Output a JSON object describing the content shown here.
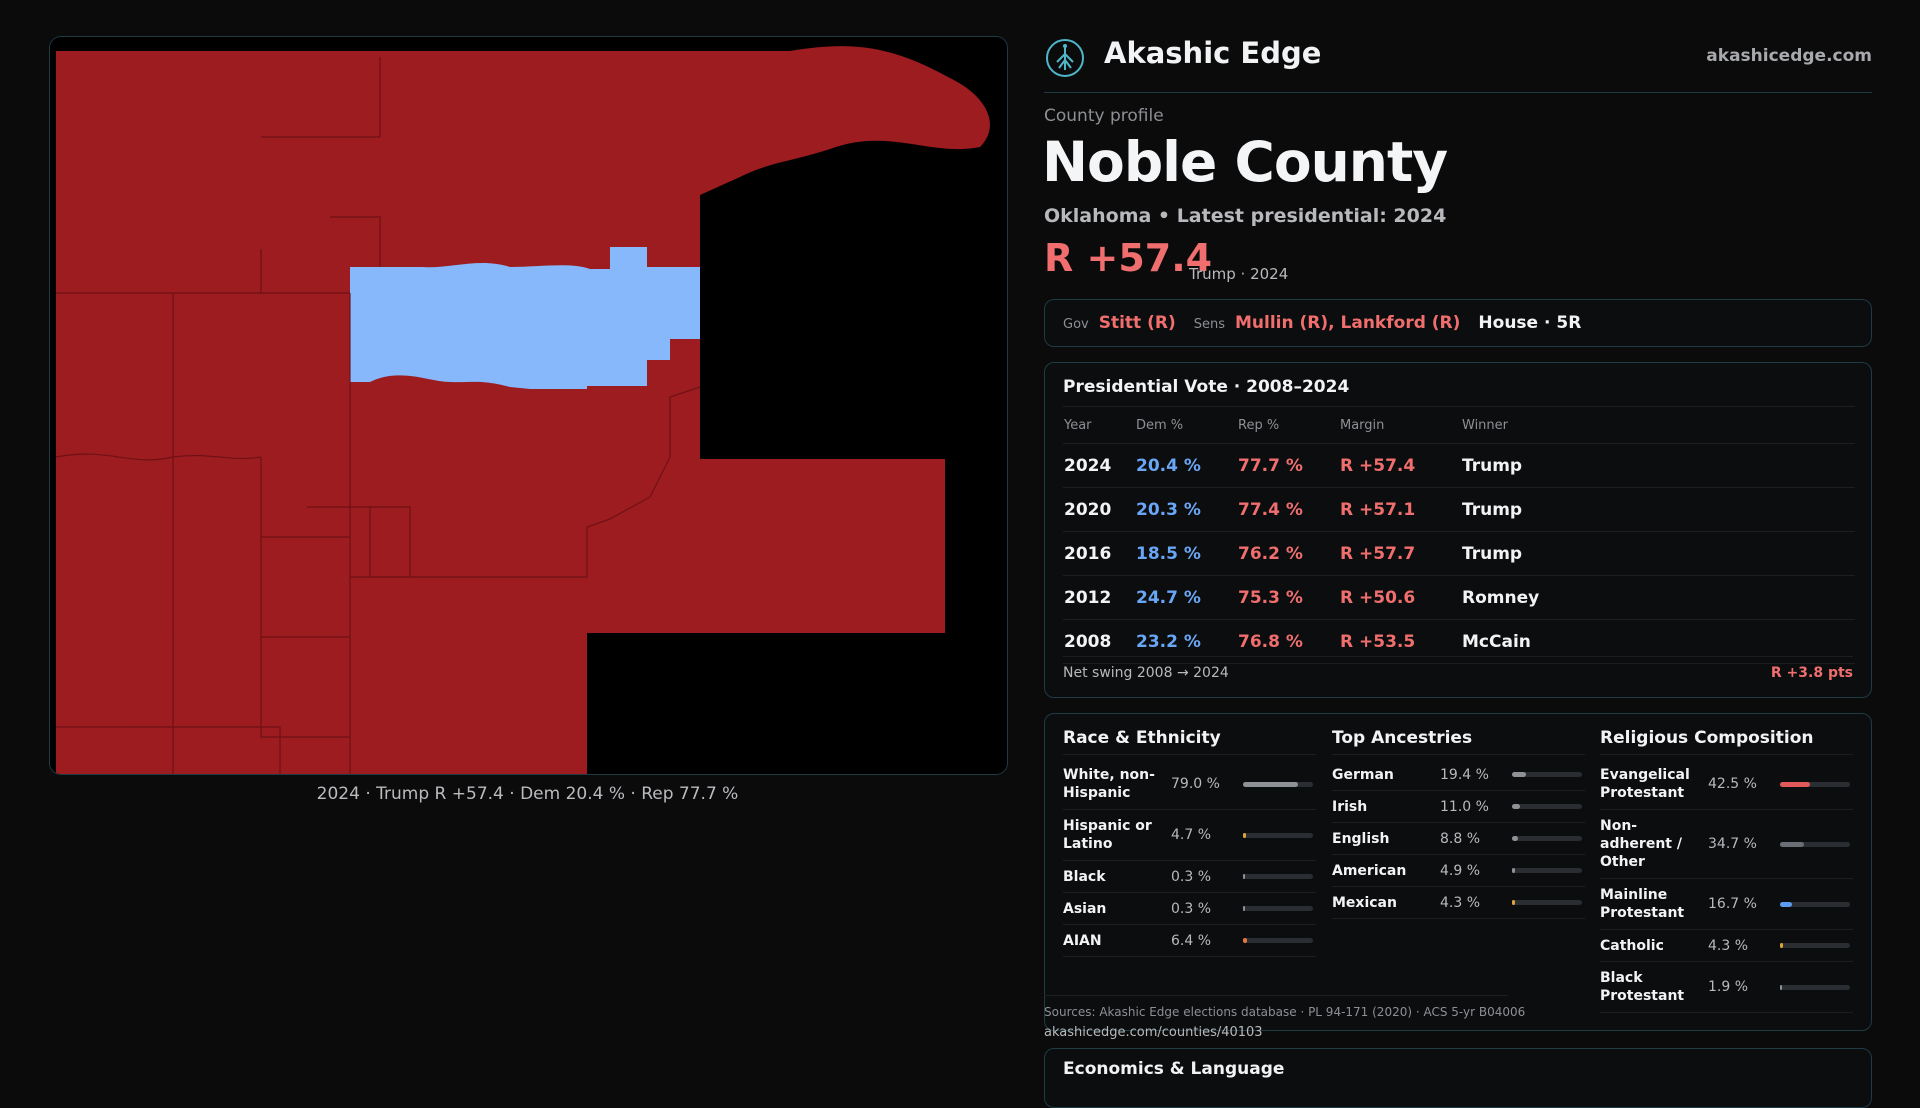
{
  "map": {
    "caption": "2024 · Trump R +57.4 · Dem 20.4 % · Rep 77.7 %",
    "colors": {
      "rep": "#9c1c20",
      "dem": "#86b8fb",
      "background": "#000000"
    }
  },
  "brand": {
    "name": "Akashic Edge",
    "url": "akashicedge.com",
    "logo_icon": "tree-logo-icon"
  },
  "county": {
    "eyebrow": "County profile",
    "name": "Noble County",
    "subtitle": "Oklahoma • Latest presidential: 2024",
    "margin": "R +57.4",
    "margin_note": "Trump · 2024"
  },
  "officials": {
    "gov_label": "Gov",
    "gov": "Stitt (R)",
    "sens_label": "Sens",
    "sens": "Mullin (R), Lankford (R)",
    "house": "House · 5R"
  },
  "presidential": {
    "title": "Presidential Vote · 2008–2024",
    "headers": [
      "Year",
      "Dem %",
      "Rep %",
      "Margin",
      "Winner"
    ],
    "rows": [
      {
        "year": "2024",
        "dem": "20.4 %",
        "rep": "77.7 %",
        "margin": "R +57.4",
        "winner": "Trump"
      },
      {
        "year": "2020",
        "dem": "20.3 %",
        "rep": "77.4 %",
        "margin": "R +57.1",
        "winner": "Trump"
      },
      {
        "year": "2016",
        "dem": "18.5 %",
        "rep": "76.2 %",
        "margin": "R +57.7",
        "winner": "Trump"
      },
      {
        "year": "2012",
        "dem": "24.7 %",
        "rep": "75.3 %",
        "margin": "R +50.6",
        "winner": "Romney"
      },
      {
        "year": "2008",
        "dem": "23.2 %",
        "rep": "76.8 %",
        "margin": "R +53.5",
        "winner": "McCain"
      }
    ],
    "swing_label": "Net swing 2008 → 2024",
    "swing_value": "R +3.8 pts"
  },
  "race": {
    "title": "Race & Ethnicity",
    "items": [
      {
        "label": "White, non-Hispanic",
        "value": "79.0 %",
        "pct": 79.0,
        "color": "#8e9297"
      },
      {
        "label": "Hispanic or Latino",
        "value": "4.7 %",
        "pct": 4.7,
        "color": "#e0a33a"
      },
      {
        "label": "Black",
        "value": "0.3 %",
        "pct": 0.3,
        "color": "#8e9297"
      },
      {
        "label": "Asian",
        "value": "0.3 %",
        "pct": 0.3,
        "color": "#8e9297"
      },
      {
        "label": "AIAN",
        "value": "6.4 %",
        "pct": 6.4,
        "color": "#e07a3a"
      }
    ]
  },
  "ancestry": {
    "title": "Top Ancestries",
    "items": [
      {
        "label": "German",
        "value": "19.4 %",
        "pct": 19.4,
        "color": "#8e9297"
      },
      {
        "label": "Irish",
        "value": "11.0 %",
        "pct": 11.0,
        "color": "#8e9297"
      },
      {
        "label": "English",
        "value": "8.8 %",
        "pct": 8.8,
        "color": "#8e9297"
      },
      {
        "label": "American",
        "value": "4.9 %",
        "pct": 4.9,
        "color": "#8e9297"
      },
      {
        "label": "Mexican",
        "value": "4.3 %",
        "pct": 4.3,
        "color": "#e0a33a"
      }
    ]
  },
  "religion": {
    "title": "Religious Composition",
    "items": [
      {
        "label": "Evangelical Protestant",
        "value": "42.5 %",
        "pct": 42.5,
        "color": "#e05a5a"
      },
      {
        "label": "Non-adherent / Other",
        "value": "34.7 %",
        "pct": 34.7,
        "color": "#6b6f75"
      },
      {
        "label": "Mainline Protestant",
        "value": "16.7 %",
        "pct": 16.7,
        "color": "#5b9ef0"
      },
      {
        "label": "Catholic",
        "value": "4.3 %",
        "pct": 4.3,
        "color": "#e0a33a"
      },
      {
        "label": "Black Protestant",
        "value": "1.9 %",
        "pct": 1.9,
        "color": "#8e9297"
      }
    ]
  },
  "sources": {
    "text": "Sources: Akashic Edge elections database · PL 94-171 (2020) · ACS 5-yr B04006",
    "url": "akashicedge.com/counties/40103"
  },
  "economics": {
    "title": "Economics & Language"
  }
}
